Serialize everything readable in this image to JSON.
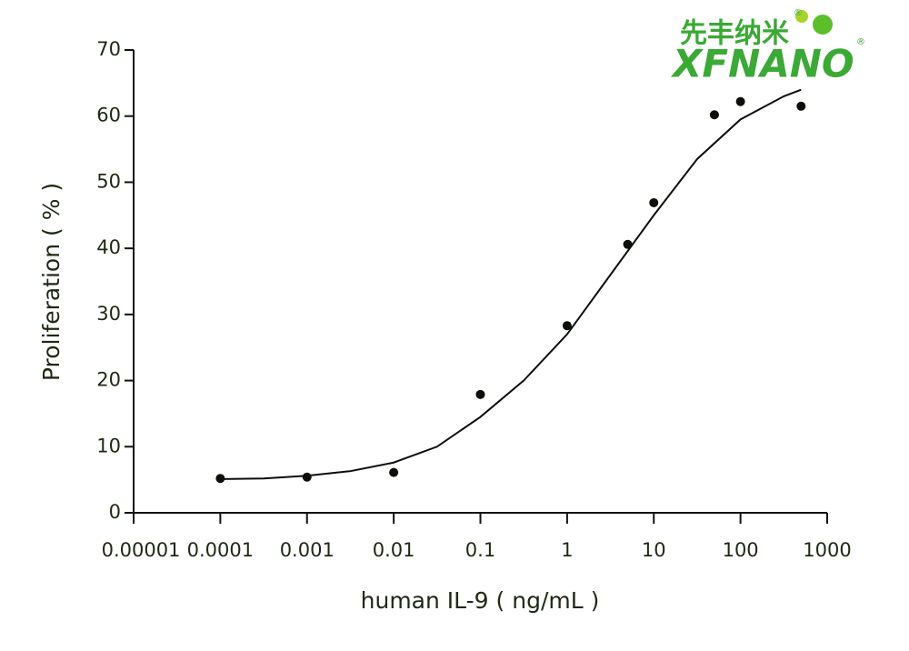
{
  "chart_data": {
    "type": "scatter",
    "logo": {
      "cn": "先丰纳米",
      "en": "XFNANO",
      "mark": "®"
    },
    "x_label": "human IL-9 ( ng/mL )",
    "y_label": "Proliferation ( % )",
    "xscale": "log",
    "xlim": [
      1e-05,
      1000
    ],
    "xticks": [
      1e-05,
      0.0001,
      0.001,
      0.01,
      0.1,
      1,
      10,
      100,
      1000
    ],
    "ylim": [
      0,
      70
    ],
    "yticks": [
      0,
      10,
      20,
      30,
      40,
      50,
      60,
      70
    ],
    "grid": false,
    "color": "#0b0f08",
    "x": [
      0.0001,
      0.001,
      0.01,
      0.1,
      1,
      5,
      10,
      50,
      100,
      500
    ],
    "values": [
      5.2,
      5.4,
      6.1,
      17.9,
      28.3,
      40.6,
      46.9,
      60.2,
      62.2,
      61.5
    ],
    "fit": {
      "color": "#0b0f08",
      "x": [
        0.0001,
        0.000316,
        0.001,
        0.00316,
        0.01,
        0.0316,
        0.1,
        0.316,
        1,
        3.16,
        10,
        31.6,
        100,
        316,
        500
      ],
      "values": [
        5.1,
        5.2,
        5.6,
        6.3,
        7.6,
        10.0,
        14.5,
        20.0,
        27.0,
        36.0,
        45.0,
        53.5,
        59.5,
        63.0,
        64.0
      ]
    }
  }
}
